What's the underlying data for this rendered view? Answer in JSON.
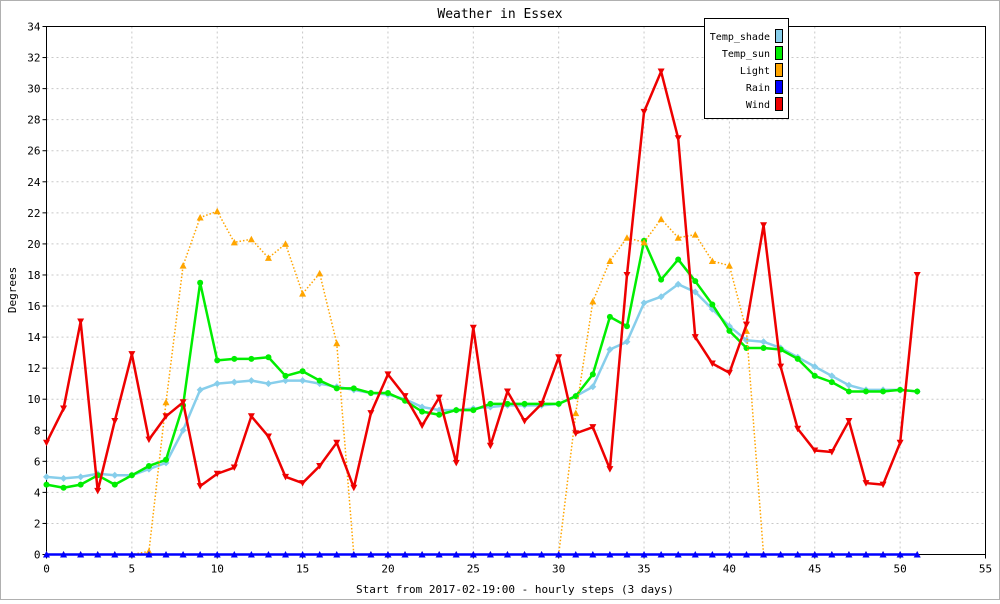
{
  "chart_data": {
    "type": "line",
    "title": "Weather in Essex",
    "xlabel": "Start from 2017-02-19:00 - hourly steps (3 days)",
    "ylabel": "Degrees",
    "xlim": [
      0,
      55
    ],
    "ylim": [
      0,
      34
    ],
    "xticks": [
      0,
      5,
      10,
      15,
      20,
      25,
      30,
      35,
      40,
      45,
      50,
      55
    ],
    "yticks": [
      0,
      2,
      4,
      6,
      8,
      10,
      12,
      14,
      16,
      18,
      20,
      22,
      24,
      26,
      28,
      30,
      32,
      34
    ],
    "grid": true,
    "legend_position": "top-right",
    "x": [
      0,
      1,
      2,
      3,
      4,
      5,
      6,
      7,
      8,
      9,
      10,
      11,
      12,
      13,
      14,
      15,
      16,
      17,
      18,
      19,
      20,
      21,
      22,
      23,
      24,
      25,
      26,
      27,
      28,
      29,
      30,
      31,
      32,
      33,
      34,
      35,
      36,
      37,
      38,
      39,
      40,
      41,
      42,
      43,
      44,
      45,
      46,
      47,
      48,
      49,
      50,
      51
    ],
    "series": [
      {
        "name": "Temp_shade",
        "color": "#87ceeb",
        "marker": "diamond",
        "style": "solid",
        "values": [
          5.0,
          4.9,
          5.0,
          5.2,
          5.1,
          5.1,
          5.5,
          5.9,
          8.0,
          10.6,
          11.0,
          11.1,
          11.2,
          11.0,
          11.2,
          11.2,
          11.0,
          10.8,
          10.6,
          10.4,
          10.3,
          10.0,
          9.5,
          9.3,
          9.3,
          9.4,
          9.5,
          9.6,
          9.6,
          9.6,
          9.7,
          10.2,
          10.8,
          13.2,
          13.7,
          16.2,
          16.6,
          17.4,
          16.9,
          15.8,
          14.7,
          13.8,
          13.7,
          13.3,
          12.7,
          12.1,
          11.5,
          10.9,
          10.6,
          10.6,
          10.6,
          10.5
        ]
      },
      {
        "name": "Temp_sun",
        "color": "#00ee00",
        "marker": "circle",
        "style": "solid",
        "values": [
          4.5,
          4.3,
          4.5,
          5.1,
          4.5,
          5.1,
          5.7,
          6.1,
          9.6,
          17.5,
          12.5,
          12.6,
          12.6,
          12.7,
          11.5,
          11.8,
          11.2,
          10.7,
          10.7,
          10.4,
          10.4,
          9.9,
          9.2,
          9.0,
          9.3,
          9.3,
          9.7,
          9.7,
          9.7,
          9.7,
          9.7,
          10.2,
          11.6,
          15.3,
          14.7,
          20.2,
          17.7,
          19.0,
          17.6,
          16.1,
          14.4,
          13.3,
          13.3,
          13.2,
          12.6,
          11.5,
          11.1,
          10.5,
          10.5,
          10.5,
          10.6,
          10.5
        ]
      },
      {
        "name": "Light",
        "color": "#ffa500",
        "marker": "triangle-up",
        "style": "dotted",
        "values": [
          0.0,
          0.0,
          0.0,
          0.0,
          0.0,
          0.0,
          0.2,
          9.8,
          18.6,
          21.7,
          22.1,
          20.1,
          20.3,
          19.1,
          20.0,
          16.8,
          18.1,
          13.6,
          0.0,
          0.0,
          0.0,
          0.0,
          0.0,
          0.0,
          0.0,
          0.0,
          0.0,
          0.0,
          0.0,
          0.0,
          0.0,
          9.1,
          16.3,
          18.9,
          20.4,
          20.1,
          21.6,
          20.4,
          20.6,
          18.9,
          18.6,
          14.4,
          0.0,
          0.0,
          0.0,
          0.0,
          0.0,
          0.0,
          0.0,
          0.0,
          0.0,
          0.0
        ]
      },
      {
        "name": "Rain",
        "color": "#0000ff",
        "marker": "triangle-up",
        "style": "solid",
        "values": [
          0,
          0,
          0,
          0,
          0,
          0,
          0,
          0,
          0,
          0,
          0,
          0,
          0,
          0,
          0,
          0,
          0,
          0,
          0,
          0,
          0,
          0,
          0,
          0,
          0,
          0,
          0,
          0,
          0,
          0,
          0,
          0,
          0,
          0,
          0,
          0,
          0,
          0,
          0,
          0,
          0,
          0,
          0,
          0,
          0,
          0,
          0,
          0,
          0,
          0,
          0,
          0
        ]
      },
      {
        "name": "Wind",
        "color": "#ee0000",
        "marker": "triangle-down",
        "style": "solid",
        "values": [
          7.2,
          9.4,
          15.0,
          4.1,
          8.6,
          12.9,
          7.4,
          8.9,
          9.8,
          4.4,
          5.2,
          5.6,
          8.9,
          7.6,
          5.0,
          4.6,
          5.7,
          7.2,
          4.3,
          9.1,
          11.6,
          10.2,
          8.3,
          10.1,
          5.9,
          14.6,
          7.0,
          10.5,
          8.6,
          9.7,
          12.7,
          7.8,
          8.2,
          5.5,
          18.0,
          28.5,
          31.1,
          26.8,
          14.0,
          12.3,
          11.7,
          14.8,
          21.2,
          12.1,
          8.1,
          6.7,
          6.6,
          8.6,
          4.6,
          4.5,
          7.2,
          18.0
        ]
      }
    ]
  }
}
